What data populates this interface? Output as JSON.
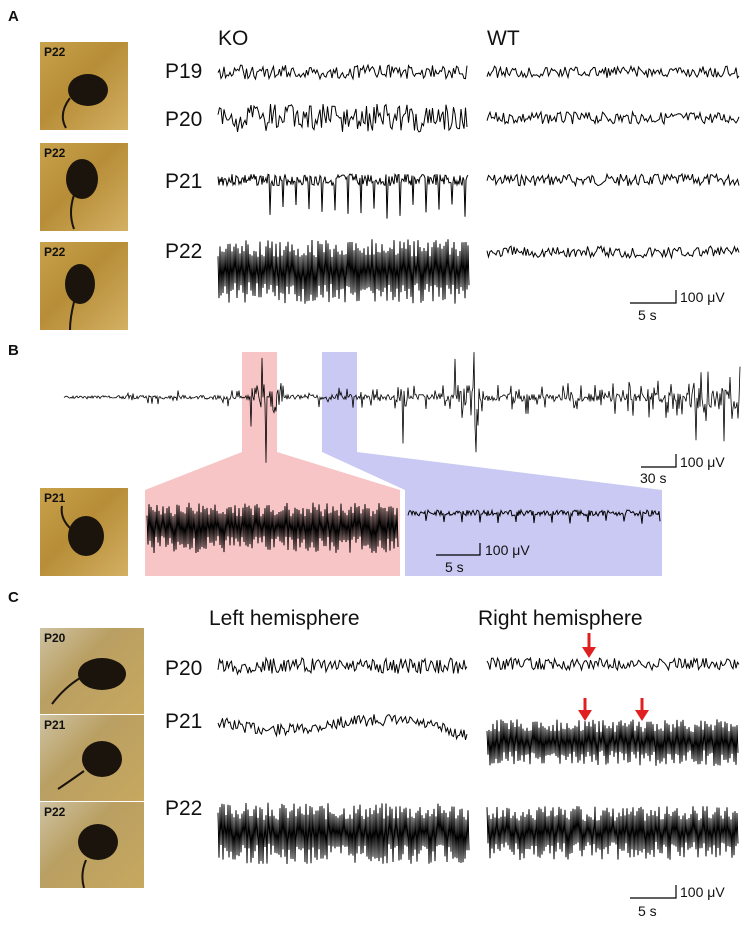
{
  "panel_a": {
    "letter": "A",
    "photo_tags": [
      "P22",
      "P22",
      "P22"
    ],
    "condition_labels": [
      "KO",
      "WT"
    ],
    "ages": [
      "P19",
      "P20",
      "P21",
      "P22"
    ],
    "scale_amplitude": "100 μV",
    "scale_time": "5 s"
  },
  "panel_b": {
    "letter": "B",
    "photo_tag": "P21",
    "scale_top_amplitude": "100 μV",
    "scale_top_time": "30 s",
    "scale_inset_amplitude": "100 μV",
    "scale_inset_time": "5 s",
    "highlight_colors": {
      "seizure": "#f7c5c5",
      "interictal": "#c9c9f3"
    }
  },
  "panel_c": {
    "letter": "C",
    "photo_tags": [
      "P20",
      "P21",
      "P22"
    ],
    "hemisphere_labels": [
      "Left hemisphere",
      "Right hemisphere"
    ],
    "ages": [
      "P20",
      "P21",
      "P22"
    ],
    "scale_amplitude": "100 μV",
    "scale_time": "5 s",
    "arrow_color": "#e02020"
  }
}
